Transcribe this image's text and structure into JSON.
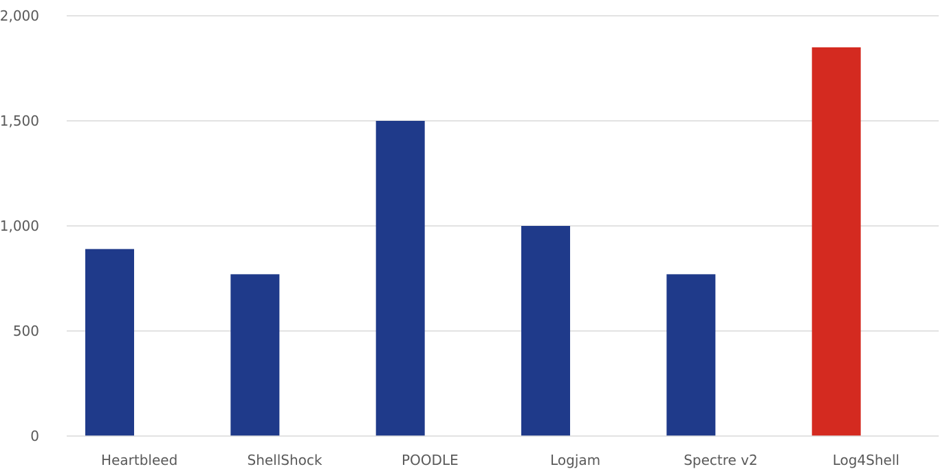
{
  "chart_data": {
    "type": "bar",
    "categories": [
      "Heartbleed",
      "ShellShock",
      "POODLE",
      "Logjam",
      "Spectre v2",
      "Log4Shell"
    ],
    "values": [
      890,
      770,
      1500,
      1000,
      770,
      1850
    ],
    "bar_colors": [
      "#1f3a8a",
      "#1f3a8a",
      "#1f3a8a",
      "#1f3a8a",
      "#1f3a8a",
      "#d42a20"
    ],
    "ylim": [
      0,
      2000
    ],
    "yticks": [
      0,
      500,
      1000,
      1500,
      2000
    ],
    "ytick_labels": [
      "0",
      "500",
      "1,000",
      "1,500",
      "2,000"
    ],
    "grid": true,
    "legend": "none"
  }
}
